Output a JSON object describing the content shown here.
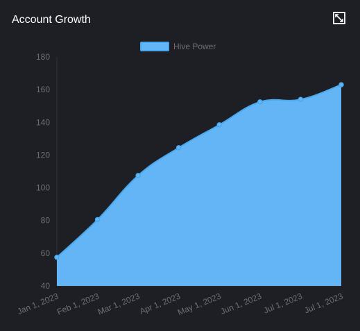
{
  "card": {
    "title": "Account Growth"
  },
  "icons": {
    "expand": "expand-icon"
  },
  "colors": {
    "background": "#1e1f24",
    "fill": "#64b5f6",
    "line": "#4aa8ef",
    "point": "#64b5f6",
    "axis_text": "#6e6e73",
    "axis_line": "#2f3036",
    "legend_text": "#6e6e73"
  },
  "chart_data": {
    "type": "area",
    "x": [
      "Jan 1, 2023",
      "Feb 1, 2023",
      "Mar 1, 2023",
      "Apr 1, 2023",
      "May 1, 2023",
      "Jun 1, 2023",
      "Jul 1, 2023",
      "Jul 1, 2023"
    ],
    "series": [
      {
        "name": "Hive Power",
        "values": [
          57.5,
          80.5,
          107.5,
          124.5,
          138.5,
          152.5,
          154,
          163
        ]
      }
    ],
    "yticks": [
      40,
      60,
      80,
      100,
      120,
      140,
      160,
      180
    ],
    "ylim": [
      40,
      180
    ],
    "legend": "top-center",
    "grid": false
  }
}
